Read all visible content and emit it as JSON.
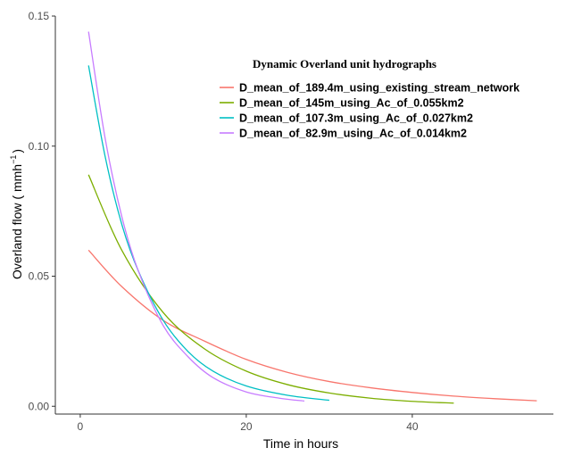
{
  "chart_data": {
    "type": "line",
    "legend_title": "Dynamic Overland unit hydrographs",
    "xlabel": "Time in hours",
    "ylabel_text": "Overland flow ( mmh",
    "ylabel_sup": "−1",
    "ylabel_close": ")",
    "xlim": [
      -3,
      57
    ],
    "ylim": [
      -0.003,
      0.15
    ],
    "x_ticks": [
      0,
      20,
      40
    ],
    "x_tick_labels": [
      "0",
      "20",
      "40"
    ],
    "y_ticks": [
      0.0,
      0.05,
      0.1,
      0.15
    ],
    "y_tick_labels": [
      "0.00",
      "0.05",
      "0.10",
      "0.15"
    ],
    "legend_position": "top-right",
    "series": [
      {
        "name": "D_mean_of_189.4m_using_existing_stream_network",
        "color": "#F8766D",
        "x": [
          1,
          5,
          10,
          15,
          20,
          25,
          30,
          35,
          40,
          45,
          50,
          55
        ],
        "y": [
          0.06,
          0.046,
          0.033,
          0.025,
          0.018,
          0.013,
          0.0095,
          0.0071,
          0.0053,
          0.0039,
          0.0029,
          0.0021
        ]
      },
      {
        "name": "D_mean_of_145m_using_Ac_of_0.055km2",
        "color": "#7CAE00",
        "x": [
          1,
          5,
          10,
          15,
          20,
          25,
          30,
          35,
          40,
          45
        ],
        "y": [
          0.089,
          0.06,
          0.036,
          0.022,
          0.0135,
          0.0083,
          0.0051,
          0.0031,
          0.0019,
          0.0012
        ]
      },
      {
        "name": "D_mean_of_107.3m_using_Ac_of_0.027km2",
        "color": "#00BFC4",
        "x": [
          1,
          3,
          5,
          7,
          10,
          13,
          16,
          20,
          25,
          30
        ],
        "y": [
          0.131,
          0.096,
          0.07,
          0.052,
          0.033,
          0.021,
          0.0135,
          0.0078,
          0.0042,
          0.0023
        ]
      },
      {
        "name": "D_mean_of_82.9m_using_Ac_of_0.014km2",
        "color": "#C77CFF",
        "x": [
          1,
          3,
          5,
          7,
          10,
          13,
          16,
          20,
          24,
          27
        ],
        "y": [
          0.144,
          0.103,
          0.073,
          0.052,
          0.031,
          0.019,
          0.011,
          0.0055,
          0.0031,
          0.002
        ]
      }
    ]
  }
}
